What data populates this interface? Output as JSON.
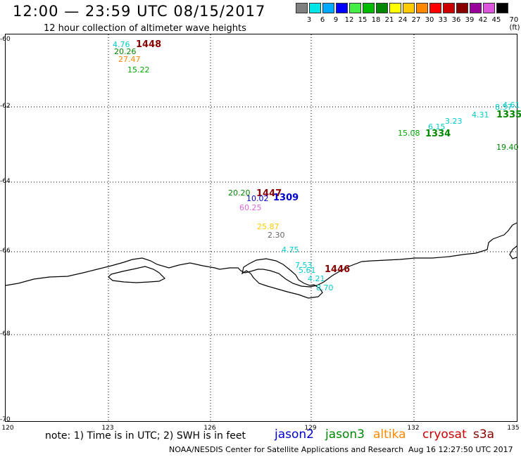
{
  "header": {
    "title": "12:00 — 23:59 UTC 08/15/2017",
    "subtitle": "12 hour collection of altimeter wave heights"
  },
  "color_scale": {
    "labels": [
      "3",
      "6",
      "9",
      "12",
      "15",
      "18",
      "21",
      "24",
      "27",
      "30",
      "33",
      "36",
      "39",
      "42",
      "45",
      "70 (ft)"
    ],
    "colors": [
      "#7f7f7f",
      "#00e6e6",
      "#00aaff",
      "#0000ff",
      "#44ee44",
      "#00bb00",
      "#008800",
      "#ffff00",
      "#ffcc00",
      "#ff8800",
      "#ff0000",
      "#cc0000",
      "#880000",
      "#990099",
      "#dd55dd",
      "#000000"
    ]
  },
  "axes": {
    "lat_labels": [
      "-60",
      "-62",
      "-64",
      "-66",
      "-68",
      "-70"
    ],
    "lon_labels": [
      "120",
      "123",
      "126",
      "129",
      "132",
      "135"
    ]
  },
  "observations": [
    {
      "text": "4.76",
      "color": "#00cccc"
    },
    {
      "text": "1448",
      "color": "#880000",
      "kind": "time"
    },
    {
      "text": "20.26",
      "color": "#008800"
    },
    {
      "text": "27.47",
      "color": "#ff8800"
    },
    {
      "text": "15.22",
      "color": "#00aa00"
    },
    {
      "text": "4.61",
      "color": "#00cccc"
    },
    {
      "text": "8.57",
      "color": "#00cccc"
    },
    {
      "text": "1335",
      "color": "#008800",
      "kind": "time"
    },
    {
      "text": "4.31",
      "color": "#00cccc"
    },
    {
      "text": "3.23",
      "color": "#00cccc"
    },
    {
      "text": "6.15",
      "color": "#00cccc"
    },
    {
      "text": "15.08",
      "color": "#00aa00"
    },
    {
      "text": "1334",
      "color": "#008800",
      "kind": "time"
    },
    {
      "text": "19.40",
      "color": "#008800"
    },
    {
      "text": "20.20",
      "color": "#008800"
    },
    {
      "text": "1447",
      "color": "#880000",
      "kind": "time"
    },
    {
      "text": "10.02",
      "color": "#0000cc"
    },
    {
      "text": "1309",
      "color": "#0000cc",
      "kind": "time"
    },
    {
      "text": "60.25",
      "color": "#dd66dd"
    },
    {
      "text": "25.87",
      "color": "#ffcc00"
    },
    {
      "text": "2.30",
      "color": "#666666"
    },
    {
      "text": "4.75",
      "color": "#00cccc"
    },
    {
      "text": "7.53",
      "color": "#00cccc"
    },
    {
      "text": "5.61",
      "color": "#00cccc"
    },
    {
      "text": "1446",
      "color": "#880000",
      "kind": "time"
    },
    {
      "text": "4.21",
      "color": "#00cccc"
    },
    {
      "text": "8.70",
      "color": "#00cccc"
    }
  ],
  "footer": {
    "note": "note: 1) Time is in UTC; 2) SWH is in feet",
    "satellites": [
      {
        "name": "jason2",
        "color": "#0000cc"
      },
      {
        "name": "jason3",
        "color": "#008800"
      },
      {
        "name": "altika",
        "color": "#ff8800"
      },
      {
        "name": "cryosat",
        "color": "#cc0000"
      },
      {
        "name": "s3a",
        "color": "#880000"
      }
    ],
    "credit": "NOAA/NESDIS Center for Satellite Applications and Research",
    "timestamp": "Aug 16 12:27:50 UTC 2017"
  }
}
